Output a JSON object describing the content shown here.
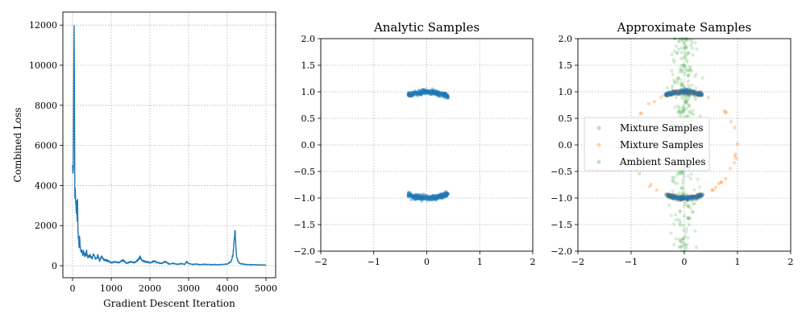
{
  "chart_data": [
    {
      "type": "line",
      "title": "",
      "xlabel": "Gradient Descent Iteration",
      "ylabel": "Combined Loss",
      "xlim": [
        -250,
        5250
      ],
      "ylim": [
        -600,
        12650
      ],
      "xticks": [
        0,
        1000,
        2000,
        3000,
        4000,
        5000
      ],
      "yticks": [
        0,
        2000,
        4000,
        6000,
        8000,
        10000,
        12000
      ],
      "grid": true,
      "color": "#1f77b4",
      "series": [
        {
          "x": [
            0,
            10,
            20,
            30,
            40,
            50,
            60,
            70,
            80,
            90,
            100,
            110,
            120,
            130,
            140,
            150,
            160,
            170,
            180,
            200,
            220,
            240,
            260,
            280,
            300,
            330,
            360,
            400,
            450,
            500,
            550,
            600,
            650,
            700,
            750,
            800,
            900,
            1000,
            1100,
            1200,
            1300,
            1400,
            1500,
            1600,
            1700,
            1750,
            1800,
            1900,
            2000,
            2100,
            2200,
            2300,
            2400,
            2500,
            2600,
            2700,
            2800,
            2900,
            2950,
            3000,
            3100,
            3200,
            3300,
            3400,
            3500,
            3600,
            3700,
            3800,
            3900,
            4000,
            4100,
            4150,
            4200,
            4220,
            4240,
            4260,
            4300,
            4350,
            4400,
            4500,
            4600,
            4700,
            4800,
            4900,
            5000
          ],
          "y": [
            4900,
            4600,
            4850,
            9200,
            12000,
            8500,
            3300,
            3900,
            3200,
            3100,
            2600,
            3200,
            2100,
            3200,
            1600,
            1400,
            1200,
            1000,
            1500,
            900,
            700,
            800,
            500,
            700,
            600,
            450,
            700,
            400,
            500,
            350,
            600,
            300,
            500,
            250,
            450,
            300,
            250,
            150,
            200,
            150,
            280,
            120,
            200,
            150,
            300,
            450,
            250,
            200,
            150,
            230,
            150,
            120,
            200,
            80,
            120,
            70,
            100,
            70,
            200,
            100,
            60,
            80,
            50,
            70,
            60,
            50,
            60,
            50,
            70,
            80,
            200,
            600,
            1800,
            1000,
            500,
            300,
            150,
            100,
            80,
            60,
            50,
            50,
            40,
            40,
            30
          ]
        }
      ]
    },
    {
      "type": "scatter",
      "title": "Analytic Samples",
      "xlabel": "",
      "ylabel": "",
      "xlim": [
        -2,
        2
      ],
      "ylim": [
        -2,
        2
      ],
      "xticks": [
        -2,
        -1,
        0,
        1,
        2
      ],
      "yticks": [
        -2.0,
        -1.5,
        -1.0,
        -0.5,
        0.0,
        0.5,
        1.0,
        1.5,
        2.0
      ],
      "grid": true,
      "series": [
        {
          "color": "#1f77b4",
          "opacity": 0.35,
          "clusters": [
            {
              "arc_center": [
                0,
                0
              ],
              "radius": 1.0,
              "x_range": [
                -0.35,
                0.4
              ],
              "side": "top"
            },
            {
              "arc_center": [
                0,
                0
              ],
              "radius": 1.0,
              "x_range": [
                -0.35,
                0.4
              ],
              "side": "bottom"
            }
          ]
        }
      ]
    },
    {
      "type": "scatter",
      "title": "Approximate Samples",
      "xlabel": "",
      "ylabel": "",
      "xlim": [
        -2,
        2
      ],
      "ylim": [
        -2,
        2
      ],
      "xticks": [
        -2,
        -1,
        0,
        1,
        2
      ],
      "yticks": [
        -2.0,
        -1.5,
        -1.0,
        -0.5,
        0.0,
        0.5,
        1.0,
        1.5,
        2.0
      ],
      "grid": true,
      "legend_position": "center-left",
      "series": [
        {
          "name": "Mixture Samples",
          "color": "#1f77b4",
          "opacity": 0.2,
          "description": "Two arcs at y=±1, x from -0.35 to 0.35"
        },
        {
          "name": "Mixture Samples",
          "color": "#ff7f0e",
          "opacity": 0.2,
          "description": "Dense arcs at y=±1 plus sparse points on circle of radius 1"
        },
        {
          "name": "Ambient Samples",
          "color": "#2ca02c",
          "opacity": 0.15,
          "description": "Vertical band centered on x=0, x in [-0.3,0.3], y in [-2,2]"
        }
      ]
    }
  ]
}
